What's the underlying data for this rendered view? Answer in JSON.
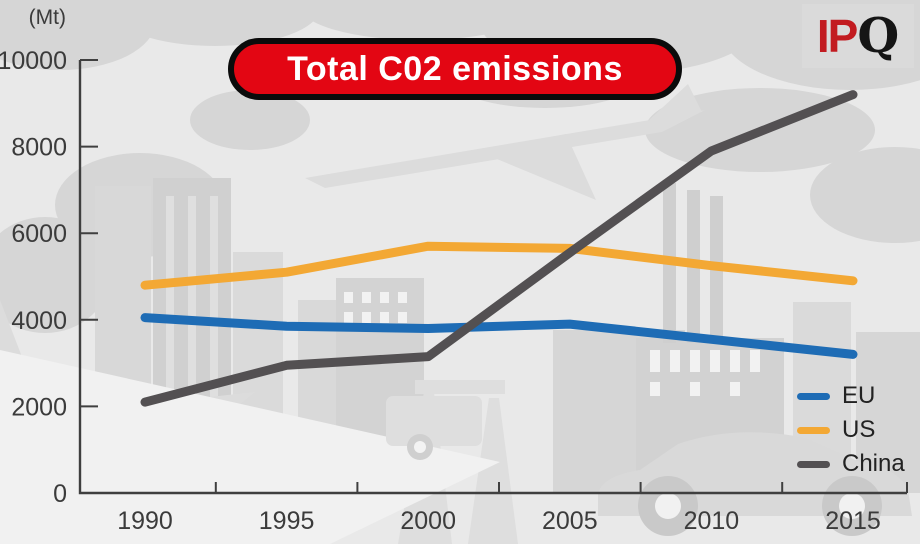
{
  "header": {
    "title": "Total C02 emissions",
    "logo": {
      "part1": "IP",
      "part2": "Q"
    }
  },
  "chart_data": {
    "type": "line",
    "title": "Total C02 emissions",
    "unit_label": "(Mt)",
    "x": [
      1990,
      1995,
      2000,
      2005,
      2010,
      2015
    ],
    "series": [
      {
        "name": "EU",
        "color": "#1e6cb5",
        "values": [
          4050,
          3850,
          3800,
          3900,
          3550,
          3200
        ]
      },
      {
        "name": "US",
        "color": "#f3a834",
        "values": [
          4800,
          5100,
          5700,
          5650,
          5250,
          4900
        ]
      },
      {
        "name": "China",
        "color": "#535052",
        "values": [
          2100,
          2950,
          3150,
          5550,
          7900,
          9200
        ]
      }
    ],
    "ylim": [
      0,
      10000
    ],
    "yticks": [
      0,
      2000,
      4000,
      6000,
      8000,
      10000
    ],
    "grid": false,
    "legend_position": "right-bottom"
  },
  "colors": {
    "badge_red": "#e30613",
    "badge_border": "#0b0b0b",
    "logo_red": "#c21b20",
    "logo_black": "#151515",
    "axis": "#3f3f3f",
    "tick_text": "#3b3b3b",
    "background": "#e9e9e9"
  }
}
